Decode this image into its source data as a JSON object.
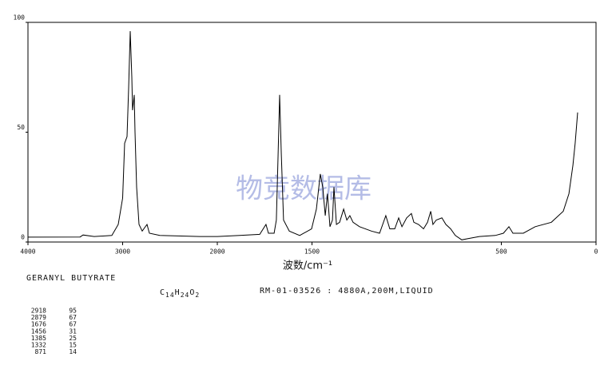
{
  "chart_data": {
    "type": "line",
    "x_label": "波数/cm⁻¹",
    "watermark": "物竞数据库",
    "compound": "GERANYL BUTYRATE",
    "formula": [
      [
        "C",
        "14"
      ],
      [
        "H",
        "24"
      ],
      [
        "O",
        "2"
      ]
    ],
    "sample": "RM-01-03526 : 4880A,200M,LIQUID",
    "peaks": [
      [
        2918,
        95
      ],
      [
        2879,
        67
      ],
      [
        1676,
        67
      ],
      [
        1456,
        31
      ],
      [
        1385,
        25
      ],
      [
        1332,
        15
      ],
      [
        871,
        14
      ]
    ],
    "xlim": [
      4000,
      0
    ],
    "xscale": "piecewise",
    "xbreak": 2000,
    "xticks": [
      4000,
      3000,
      2000,
      1500,
      500,
      0
    ],
    "ylim": [
      0,
      100
    ],
    "yticks": [
      0,
      50,
      100
    ],
    "color": "#000000",
    "x": [
      4000,
      3450,
      3418,
      3300,
      3114,
      3046,
      3000,
      2979,
      2954,
      2937,
      2920,
      2903,
      2895,
      2878,
      2869,
      2852,
      2827,
      2793,
      2743,
      2717,
      2608,
      2186,
      2000,
      1882,
      1776,
      1743,
      1730,
      1700,
      1688,
      1679,
      1671,
      1662,
      1650,
      1620,
      1565,
      1502,
      1477,
      1456,
      1443,
      1430,
      1418,
      1405,
      1392,
      1384,
      1371,
      1354,
      1333,
      1316,
      1300,
      1283,
      1249,
      1186,
      1143,
      1110,
      1089,
      1063,
      1042,
      1025,
      1000,
      975,
      962,
      937,
      911,
      890,
      873,
      861,
      844,
      814,
      793,
      768,
      743,
      709,
      679,
      616,
      532,
      489,
      460,
      439,
      384,
      321,
      236,
      173,
      143,
      122,
      110,
      97
    ],
    "values": [
      2.2,
      2.3,
      3.2,
      2.5,
      3,
      8,
      20,
      45,
      48,
      70,
      96,
      75,
      60,
      67,
      50,
      25,
      8,
      5,
      8,
      4,
      3,
      2.5,
      2.5,
      3,
      3.5,
      8,
      4,
      4,
      10,
      40,
      67,
      40,
      10,
      5,
      3,
      6,
      15,
      31,
      25,
      12,
      22,
      7,
      10,
      25,
      8,
      9,
      15,
      10,
      12,
      9,
      7,
      5,
      4,
      12,
      6,
      6,
      11,
      7,
      11,
      13,
      9,
      8,
      6,
      9,
      14,
      8,
      10,
      11,
      8,
      6,
      3,
      1,
      1.5,
      2.5,
      3,
      4,
      7,
      4,
      4,
      7,
      9,
      14,
      22,
      35,
      45,
      59
    ]
  }
}
